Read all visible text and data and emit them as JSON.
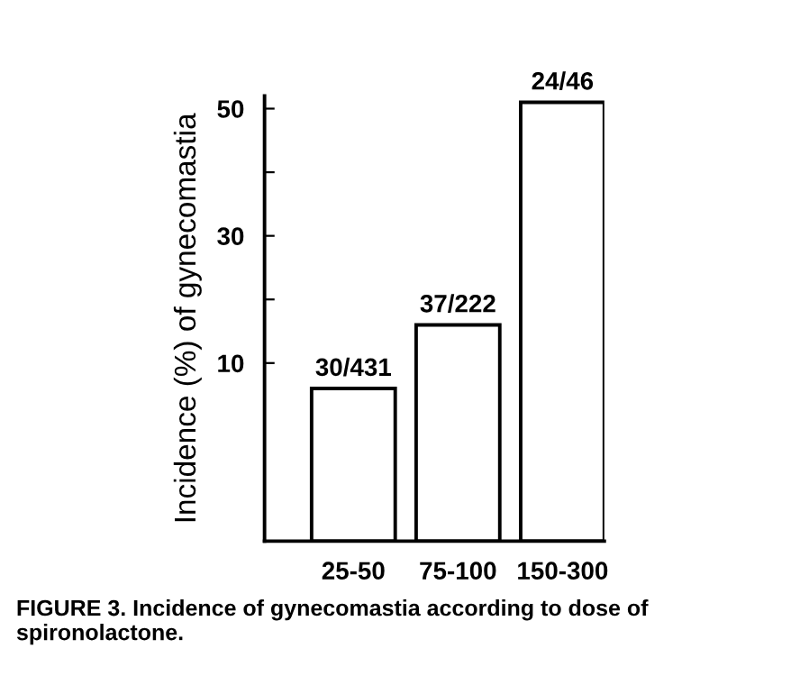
{
  "chart_data": {
    "type": "bar",
    "categories": [
      "25-50",
      "75-100",
      "150-300"
    ],
    "base": [
      -18,
      -18,
      -18
    ],
    "values": [
      24,
      34,
      69
    ],
    "value_labels": [
      "30/431",
      "37/222",
      "24/46"
    ],
    "color": "#ffffff",
    "ylabel": "Incidence (%) of gynecomastia",
    "ylim": [
      -18,
      52
    ],
    "yticks": [
      10,
      {
        "value": 20,
        "label": null
      },
      30,
      {
        "value": 40,
        "label": null
      },
      50
    ],
    "grid": false,
    "annotations": [
      "FIGURE 3. Incidence of gynecomastia according to dose of spironolactone."
    ]
  }
}
